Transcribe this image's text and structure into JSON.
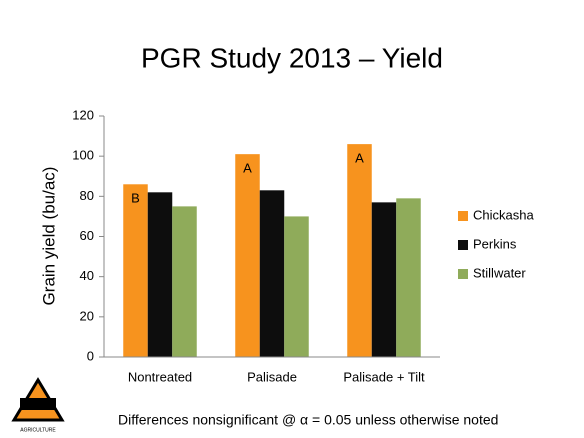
{
  "chart_data": {
    "type": "bar",
    "title": "PGR Study 2013 – Yield",
    "ylabel": "Grain yield (bu/ac)",
    "categories": [
      "Nontreated",
      "Palisade",
      "Palisade + Tilt"
    ],
    "series": [
      {
        "name": "Chickasha",
        "color": "#f7931e",
        "values": [
          86,
          101,
          106
        ],
        "annotations": [
          "B",
          "A",
          "A"
        ]
      },
      {
        "name": "Perkins",
        "color": "#0d0d0d",
        "values": [
          82,
          83,
          77
        ]
      },
      {
        "name": "Stillwater",
        "color": "#8fab5a",
        "values": [
          75,
          70,
          79
        ]
      }
    ],
    "ylim": [
      0,
      120
    ],
    "yticks": [
      0,
      20,
      40,
      60,
      80,
      100,
      120
    ],
    "grid": false,
    "legend": "right",
    "footnote": "Differences nonsignificant @ α = 0.05 unless otherwise noted",
    "logo_text": "AGRICULTURE"
  }
}
